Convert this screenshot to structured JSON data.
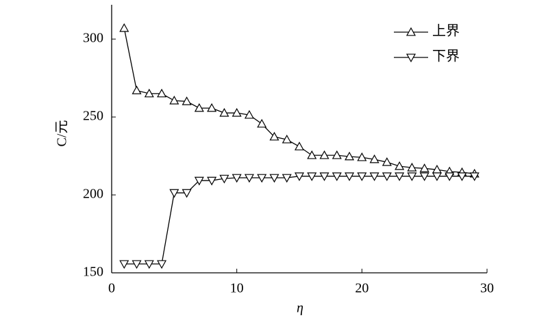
{
  "chart_data": {
    "type": "line",
    "x_label": "η",
    "y_label": "C/元",
    "x": [
      1,
      2,
      3,
      4,
      5,
      6,
      7,
      8,
      9,
      10,
      11,
      12,
      13,
      14,
      15,
      16,
      17,
      18,
      19,
      20,
      21,
      22,
      23,
      24,
      25,
      26,
      27,
      28,
      29
    ],
    "series": [
      {
        "name": "上界",
        "color": "#000000",
        "marker": "triangle-up",
        "values": [
          307,
          267,
          265,
          265,
          260.5,
          260,
          255.7,
          255.7,
          252.6,
          252.6,
          251.3,
          245.6,
          237.3,
          235.5,
          231,
          225.4,
          225.4,
          225.4,
          224.6,
          224.1,
          222.8,
          221,
          218.4,
          217.5,
          217,
          216.2,
          215,
          214.5,
          213.6
        ]
      },
      {
        "name": "下界",
        "color": "#000000",
        "marker": "triangle-down",
        "values": [
          155.7,
          155.7,
          155.7,
          155.7,
          201.3,
          201.3,
          209.2,
          209.2,
          210.5,
          211,
          211,
          211,
          211,
          211,
          212,
          212,
          212,
          212,
          212,
          212,
          212,
          212,
          212,
          212,
          212,
          212,
          212,
          212,
          212
        ]
      }
    ],
    "xlim": [
      0,
      30
    ],
    "xticks": [
      0,
      10,
      20,
      30
    ],
    "ylim": [
      150,
      322
    ],
    "yticks": [
      150,
      200,
      250,
      300
    ],
    "legend": "upper-right",
    "grid": false
  }
}
